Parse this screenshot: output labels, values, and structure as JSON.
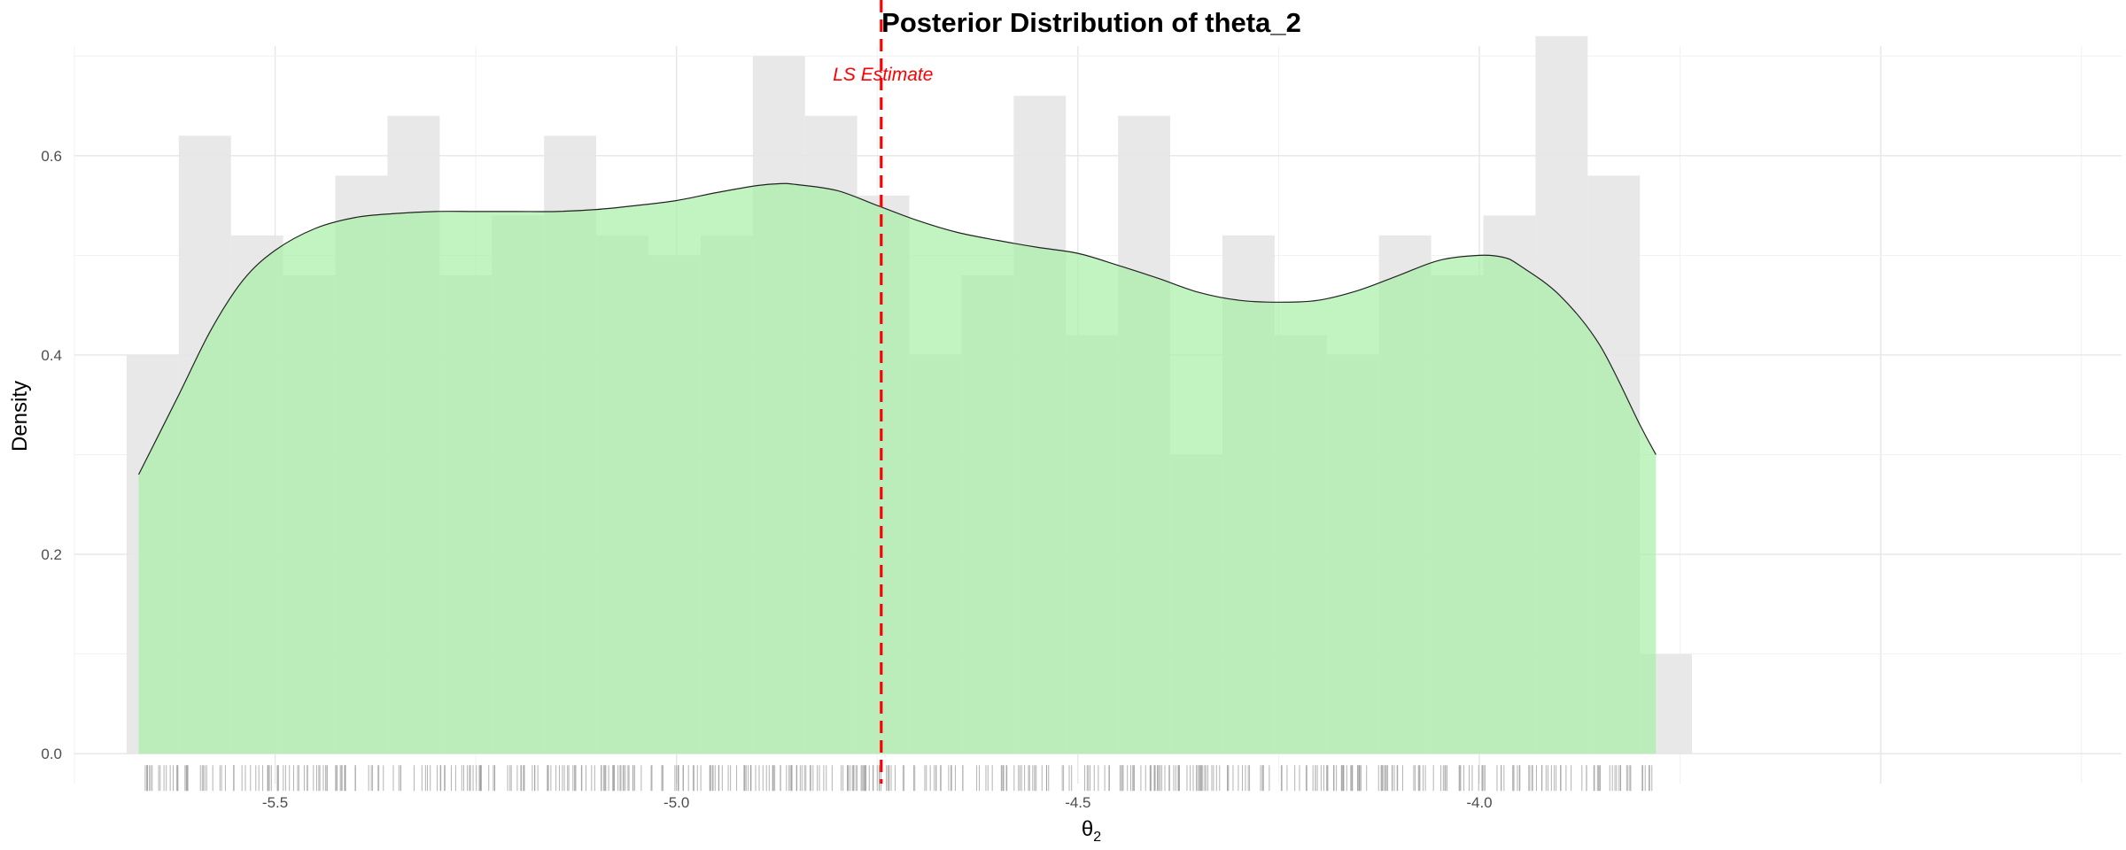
{
  "chart_data": {
    "type": "histogram",
    "title": "Posterior Distribution of theta_2",
    "xlabel": "θ",
    "xlabel_sub": "2",
    "ylabel": "Density",
    "xlim": [
      -5.75,
      -3.2
    ],
    "ylim": [
      -0.03,
      0.71
    ],
    "x_ticks": [
      -5.5,
      -5.0,
      -4.5,
      -4.0
    ],
    "x_tick_labels": [
      "-5.5",
      "-5.0",
      "-4.5",
      "-4.0"
    ],
    "y_ticks": [
      0.0,
      0.2,
      0.4,
      0.6
    ],
    "y_tick_labels": [
      "0.0",
      "0.2",
      "0.4",
      "0.6"
    ],
    "grid": true,
    "histogram": {
      "bin_start": -5.685,
      "bin_width": 0.065,
      "color": "#e5e5e5",
      "values": [
        0.4,
        0.62,
        0.52,
        0.48,
        0.58,
        0.64,
        0.48,
        0.54,
        0.62,
        0.52,
        0.5,
        0.52,
        0.7,
        0.64,
        0.56,
        0.4,
        0.48,
        0.66,
        0.42,
        0.64,
        0.3,
        0.52,
        0.42,
        0.4,
        0.52,
        0.48,
        0.54,
        0.72,
        0.58,
        0.1
      ]
    },
    "density": {
      "color": "#a8f0a8",
      "x": [
        -5.67,
        -5.62,
        -5.58,
        -5.54,
        -5.5,
        -5.45,
        -5.4,
        -5.35,
        -5.3,
        -5.25,
        -5.2,
        -5.15,
        -5.1,
        -5.05,
        -5.0,
        -4.95,
        -4.9,
        -4.87,
        -4.85,
        -4.8,
        -4.75,
        -4.7,
        -4.65,
        -4.6,
        -4.55,
        -4.5,
        -4.45,
        -4.4,
        -4.35,
        -4.3,
        -4.25,
        -4.2,
        -4.15,
        -4.1,
        -4.05,
        -4.0,
        -3.97,
        -3.95,
        -3.9,
        -3.85,
        -3.8,
        -3.78
      ],
      "y": [
        0.28,
        0.36,
        0.425,
        0.475,
        0.505,
        0.527,
        0.538,
        0.542,
        0.544,
        0.544,
        0.544,
        0.544,
        0.546,
        0.55,
        0.555,
        0.563,
        0.57,
        0.572,
        0.571,
        0.565,
        0.55,
        0.535,
        0.523,
        0.515,
        0.508,
        0.502,
        0.49,
        0.477,
        0.463,
        0.455,
        0.453,
        0.455,
        0.465,
        0.48,
        0.495,
        0.5,
        0.498,
        0.49,
        0.46,
        0.41,
        0.33,
        0.3
      ]
    },
    "reference_line": {
      "x": -4.745,
      "label": "LS Estimate",
      "color": "#ff0000",
      "style": "dashed"
    },
    "rug": {
      "color": "#999999",
      "x_range": [
        -5.67,
        -3.78
      ]
    }
  }
}
